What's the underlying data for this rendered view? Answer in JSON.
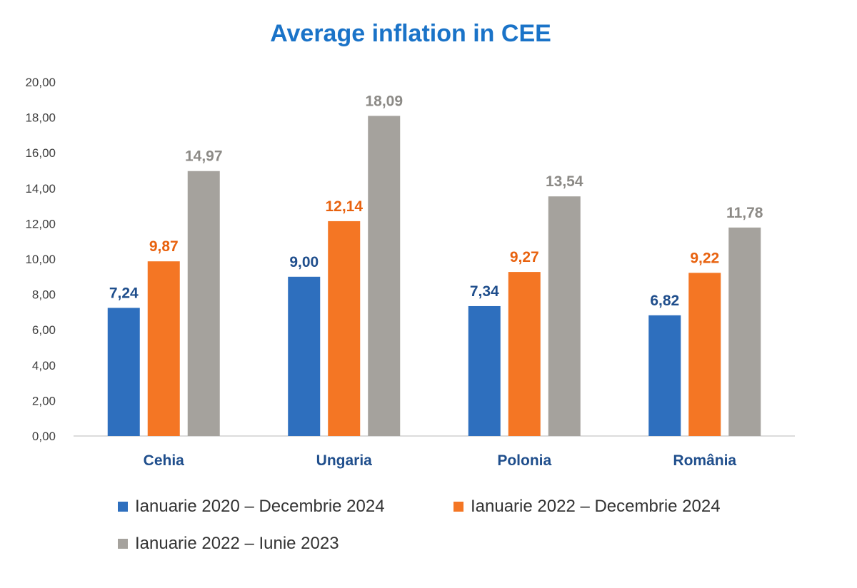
{
  "chart_data": {
    "type": "bar",
    "title": "Average inflation in CEE",
    "categories": [
      "Cehia",
      "Ungaria",
      "Polonia",
      "România"
    ],
    "series": [
      {
        "name": "Ianuarie 2020 – Decembrie 2024",
        "values": [
          7.24,
          9.0,
          7.34,
          6.82
        ],
        "labels": [
          "7,24",
          "9,00",
          "7,34",
          "6,82"
        ],
        "color": "#2e6fbe"
      },
      {
        "name": "Ianuarie 2022 – Decembrie 2024",
        "values": [
          9.87,
          12.14,
          9.27,
          9.22
        ],
        "labels": [
          "9,87",
          "12,14",
          "9,27",
          "9,22"
        ],
        "color": "#f47624"
      },
      {
        "name": "Ianuarie 2022 – Iunie 2023",
        "values": [
          14.97,
          18.09,
          13.54,
          11.78
        ],
        "labels": [
          "14,97",
          "18,09",
          "13,54",
          "11,78"
        ],
        "color": "#a5a29d"
      }
    ],
    "label_colors": [
      "#1f4e8c",
      "#e8620f",
      "#8c8a86"
    ],
    "category_label_color": "#1f4e8c",
    "ylim": [
      0,
      20
    ],
    "yticks": [
      "0,00",
      "2,00",
      "4,00",
      "6,00",
      "8,00",
      "10,00",
      "12,00",
      "14,00",
      "16,00",
      "18,00",
      "20,00"
    ],
    "xlabel": "",
    "ylabel": "",
    "grid": false,
    "legend_position": "bottom"
  }
}
